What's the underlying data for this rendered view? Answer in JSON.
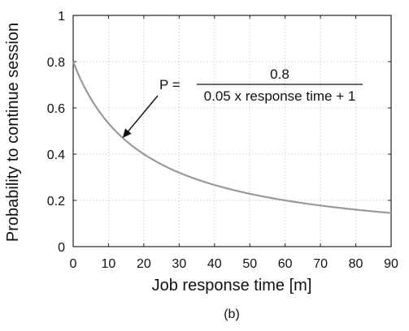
{
  "chart_data": {
    "type": "line",
    "ylabel": "Probability to continue session",
    "xlabel": "Job response time [m]",
    "xlim": [
      0,
      90
    ],
    "ylim": [
      0,
      1
    ],
    "x_ticks": [
      0,
      10,
      20,
      30,
      40,
      50,
      60,
      70,
      80,
      90
    ],
    "y_ticks": [
      0,
      0.2,
      0.4,
      0.6,
      0.8,
      1
    ],
    "y_tick_labels": [
      "0",
      "0.2",
      "0.4",
      "0.6",
      "0.8",
      "1"
    ],
    "grid": true,
    "series": [
      {
        "color": "#999999",
        "function": "P = 0.8 / (0.05 x + 1)",
        "x": [
          0,
          5,
          10,
          15,
          20,
          25,
          30,
          40,
          50,
          60,
          70,
          80,
          90
        ],
        "y": [
          0.8,
          0.64,
          0.533,
          0.457,
          0.4,
          0.356,
          0.32,
          0.267,
          0.229,
          0.2,
          0.178,
          0.16,
          0.145
        ]
      }
    ],
    "annotation": {
      "lhs": "P =",
      "numerator": "0.8",
      "denominator": "0.05 x response time + 1",
      "arrow_target": {
        "x": 14,
        "y": 0.47
      }
    },
    "panel_label": "(b)"
  }
}
